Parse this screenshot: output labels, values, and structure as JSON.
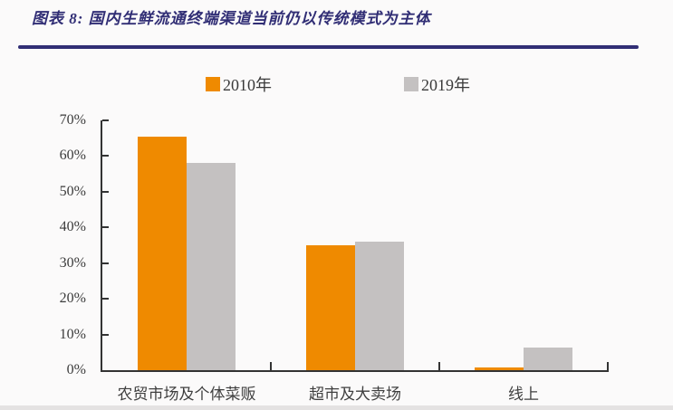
{
  "page": {
    "background": "#fbfafa"
  },
  "header": {
    "title": "图表 8:  国内生鲜流通终端渠道当前仍以传统模式为主体",
    "title_color": "#312e75",
    "rule_color": "#312e75"
  },
  "colors": {
    "series_2010": "#ef8a00",
    "series_2019": "#c4c1c1",
    "axis": "#333333",
    "text": "#3b3b3b"
  },
  "chart_data": {
    "type": "bar",
    "title": "国内生鲜流通终端渠道当前仍以传统模式为主体",
    "categories": [
      "农贸市场及个体菜贩",
      "超市及大卖场",
      "线上"
    ],
    "series": [
      {
        "name": "2010年",
        "color": "#ef8a00",
        "values": [
          65.5,
          35,
          0.8
        ]
      },
      {
        "name": "2019年",
        "color": "#c4c1c1",
        "values": [
          58,
          36,
          6.3
        ]
      }
    ],
    "xlabel": "",
    "ylabel": "",
    "ylim": [
      0,
      70
    ],
    "ytick_step": 10,
    "ytick_labels": [
      "0%",
      "10%",
      "20%",
      "30%",
      "40%",
      "50%",
      "60%",
      "70%"
    ],
    "grid": false,
    "legend_position": "top"
  }
}
